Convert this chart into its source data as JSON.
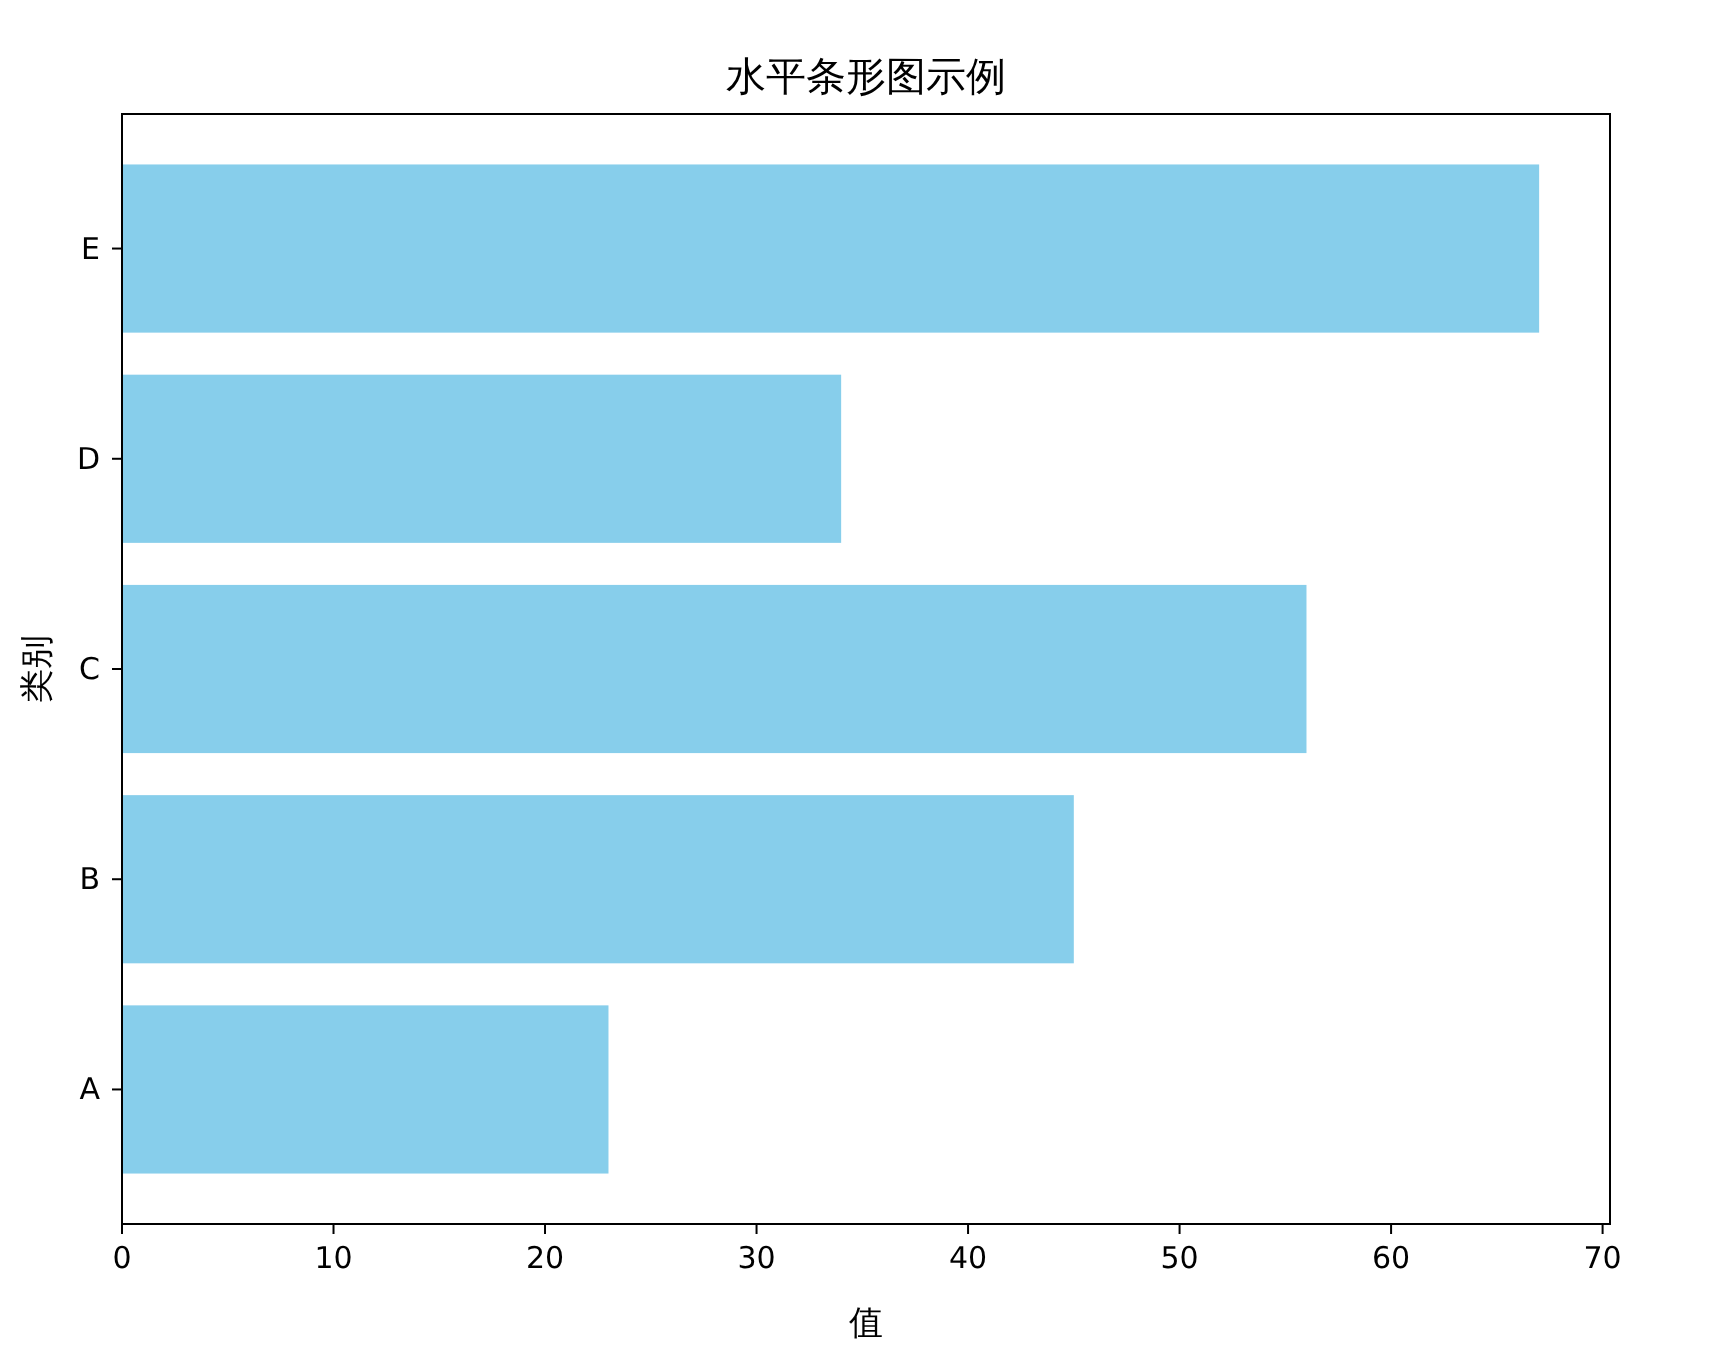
{
  "chart_data": {
    "type": "bar",
    "orientation": "horizontal",
    "title": "水平条形图示例",
    "xlabel": "值",
    "ylabel": "类别",
    "categories": [
      "E",
      "D",
      "C",
      "B",
      "A"
    ],
    "values": [
      67,
      34,
      56,
      45,
      23
    ],
    "color": "#87ceeb",
    "xlim": [
      0,
      70.35
    ],
    "xticks": [
      0,
      10,
      20,
      30,
      40,
      50,
      60,
      70
    ]
  }
}
